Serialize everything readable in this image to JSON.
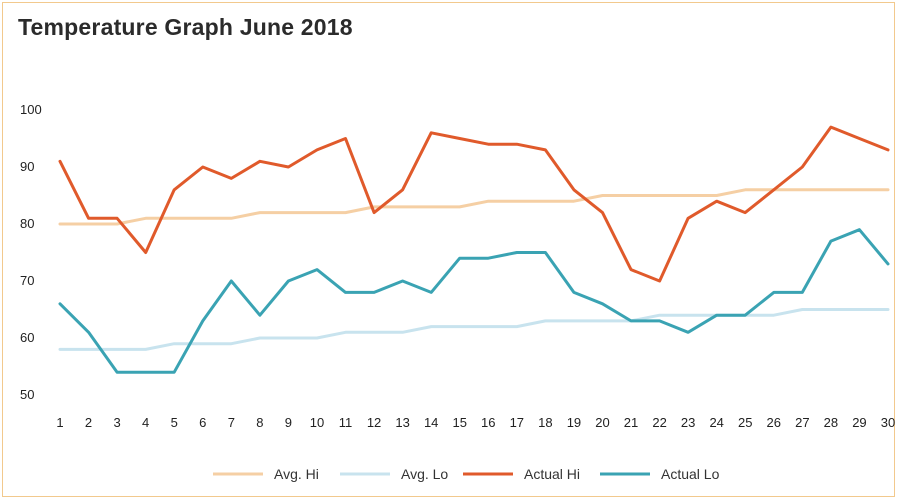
{
  "title": "Temperature Graph June 2018",
  "chart_data": {
    "type": "line",
    "title": "Temperature Graph June 2018",
    "xlabel": "",
    "ylabel": "",
    "ylim": [
      50,
      100
    ],
    "yticks": [
      50,
      60,
      70,
      80,
      90,
      100
    ],
    "grid": false,
    "legend_position": "bottom",
    "x": [
      1,
      2,
      3,
      4,
      5,
      6,
      7,
      8,
      9,
      10,
      11,
      12,
      13,
      14,
      15,
      16,
      17,
      18,
      19,
      20,
      21,
      22,
      23,
      24,
      25,
      26,
      27,
      28,
      29,
      30
    ],
    "series": [
      {
        "name": "Avg. Hi",
        "color": "#f5cfa4",
        "values": [
          80,
          80,
          80,
          81,
          81,
          81,
          81,
          82,
          82,
          82,
          82,
          83,
          83,
          83,
          83,
          84,
          84,
          84,
          84,
          85,
          85,
          85,
          85,
          85,
          86,
          86,
          86,
          86,
          86,
          86
        ]
      },
      {
        "name": "Avg. Lo",
        "color": "#c8e3ee",
        "values": [
          58,
          58,
          58,
          58,
          59,
          59,
          59,
          60,
          60,
          60,
          61,
          61,
          61,
          62,
          62,
          62,
          62,
          63,
          63,
          63,
          63,
          64,
          64,
          64,
          64,
          64,
          65,
          65,
          65,
          65
        ]
      },
      {
        "name": "Actual Hi",
        "color": "#e05a2b",
        "values": [
          91,
          81,
          81,
          75,
          86,
          90,
          88,
          91,
          90,
          93,
          95,
          82,
          86,
          96,
          95,
          94,
          94,
          93,
          86,
          82,
          72,
          70,
          81,
          84,
          82,
          86,
          90,
          97,
          95,
          93
        ]
      },
      {
        "name": "Actual Lo",
        "color": "#3aa3b3",
        "values": [
          66,
          61,
          54,
          54,
          54,
          63,
          70,
          64,
          70,
          72,
          68,
          68,
          70,
          68,
          74,
          74,
          75,
          75,
          68,
          66,
          63,
          63,
          61,
          64,
          64,
          68,
          68,
          77,
          79,
          73
        ]
      }
    ]
  }
}
